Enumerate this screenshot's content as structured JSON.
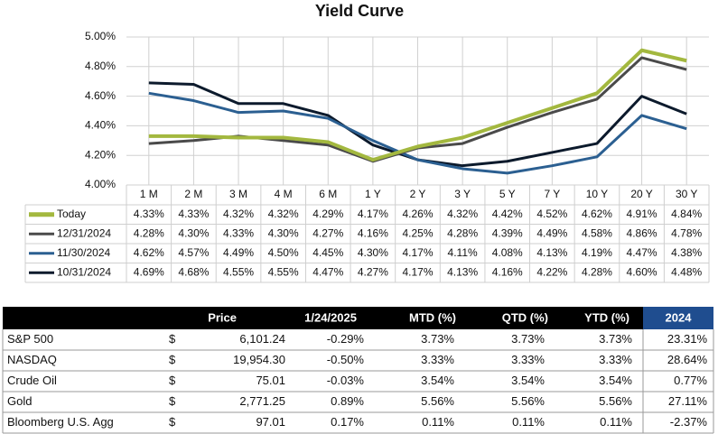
{
  "chart_data": {
    "type": "line",
    "title": "Yield Curve",
    "categories": [
      "1 M",
      "2 M",
      "3 M",
      "4 M",
      "6 M",
      "1 Y",
      "2 Y",
      "3 Y",
      "5 Y",
      "7 Y",
      "10 Y",
      "20 Y",
      "30 Y"
    ],
    "ylim": [
      4.0,
      5.0
    ],
    "yticks": [
      {
        "value": 4.0,
        "label": "4.00%"
      },
      {
        "value": 4.2,
        "label": "4.20%"
      },
      {
        "value": 4.4,
        "label": "4.40%"
      },
      {
        "value": 4.6,
        "label": "4.60%"
      },
      {
        "value": 4.8,
        "label": "4.80%"
      },
      {
        "value": 5.0,
        "label": "5.00%"
      }
    ],
    "grid": true,
    "series": [
      {
        "name": "Today",
        "color": "#a3b83f",
        "values": [
          4.33,
          4.33,
          4.32,
          4.32,
          4.29,
          4.17,
          4.26,
          4.32,
          4.42,
          4.52,
          4.62,
          4.91,
          4.84
        ],
        "value_labels": [
          "4.33%",
          "4.33%",
          "4.32%",
          "4.32%",
          "4.29%",
          "4.17%",
          "4.26%",
          "4.32%",
          "4.42%",
          "4.52%",
          "4.62%",
          "4.91%",
          "4.84%"
        ]
      },
      {
        "name": "12/31/2024",
        "color": "#4a4a4a",
        "values": [
          4.28,
          4.3,
          4.33,
          4.3,
          4.27,
          4.16,
          4.25,
          4.28,
          4.39,
          4.49,
          4.58,
          4.86,
          4.78
        ],
        "value_labels": [
          "4.28%",
          "4.30%",
          "4.33%",
          "4.30%",
          "4.27%",
          "4.16%",
          "4.25%",
          "4.28%",
          "4.39%",
          "4.49%",
          "4.58%",
          "4.86%",
          "4.78%"
        ]
      },
      {
        "name": "11/30/2024",
        "color": "#2b5f91",
        "values": [
          4.62,
          4.57,
          4.49,
          4.5,
          4.45,
          4.3,
          4.17,
          4.11,
          4.08,
          4.13,
          4.19,
          4.47,
          4.38
        ],
        "value_labels": [
          "4.62%",
          "4.57%",
          "4.49%",
          "4.50%",
          "4.45%",
          "4.30%",
          "4.17%",
          "4.11%",
          "4.08%",
          "4.13%",
          "4.19%",
          "4.47%",
          "4.38%"
        ]
      },
      {
        "name": "10/31/2024",
        "color": "#0c1a2c",
        "values": [
          4.69,
          4.68,
          4.55,
          4.55,
          4.47,
          4.27,
          4.17,
          4.13,
          4.16,
          4.22,
          4.28,
          4.6,
          4.48
        ],
        "value_labels": [
          "4.69%",
          "4.68%",
          "4.55%",
          "4.55%",
          "4.47%",
          "4.27%",
          "4.17%",
          "4.13%",
          "4.16%",
          "4.22%",
          "4.28%",
          "4.60%",
          "4.48%"
        ]
      }
    ]
  },
  "market_table": {
    "columns": [
      "Price",
      "1/24/2025",
      "MTD (%)",
      "QTD (%)",
      "YTD (%)",
      "2024"
    ],
    "rows": [
      [
        "S&P 500",
        "$",
        "6,101.24",
        "-0.29%",
        "3.73%",
        "3.73%",
        "3.73%",
        "23.31%"
      ],
      [
        "NASDAQ",
        "$",
        "19,954.30",
        "-0.50%",
        "3.33%",
        "3.33%",
        "3.33%",
        "28.64%"
      ],
      [
        "Crude Oil",
        "$",
        "75.01",
        "-0.03%",
        "3.54%",
        "3.54%",
        "3.54%",
        "0.77%"
      ],
      [
        "Gold",
        "$",
        "2,771.25",
        "0.89%",
        "5.56%",
        "5.56%",
        "5.56%",
        "27.11%"
      ],
      [
        "Bloomberg U.S. Agg",
        "$",
        "97.01",
        "0.17%",
        "0.11%",
        "0.11%",
        "0.11%",
        "-2.37%"
      ]
    ]
  }
}
